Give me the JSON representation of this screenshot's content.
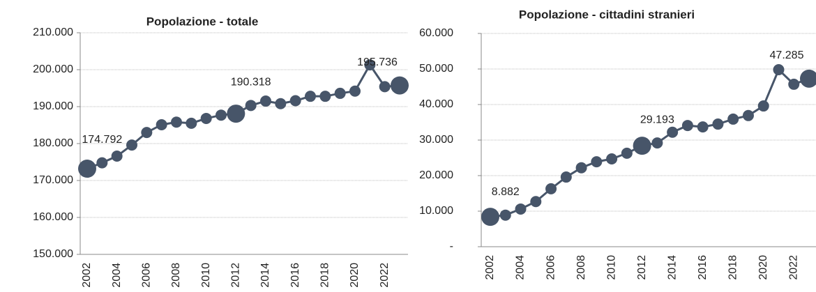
{
  "chart_data": [
    {
      "type": "line",
      "title": "Popolazione - totale",
      "categories": [
        "2002",
        null,
        "2004",
        null,
        "2006",
        null,
        "2008",
        null,
        "2010",
        null,
        "2012",
        null,
        "2014",
        null,
        "2016",
        null,
        "2018",
        null,
        "2020",
        null,
        "2022",
        null
      ],
      "series": [
        {
          "color": "#475569",
          "values": [
            173200,
            174792,
            176600,
            179600,
            183000,
            185100,
            185800,
            185500,
            186800,
            187700,
            188100,
            190318,
            191500,
            190800,
            191600,
            192800,
            192800,
            193600,
            194200,
            201300,
            195400,
            195736
          ],
          "value_labels": [
            null,
            "174.792",
            null,
            null,
            null,
            null,
            null,
            null,
            null,
            null,
            null,
            "190.318",
            null,
            null,
            null,
            null,
            null,
            null,
            null,
            null,
            null,
            "195.736"
          ]
        }
      ],
      "large_markers": [
        0,
        10,
        21
      ],
      "ylim": [
        150000,
        210000
      ],
      "yticks": [
        {
          "value": 150000,
          "label": "150.000"
        },
        {
          "value": 160000,
          "label": "160.000"
        },
        {
          "value": 170000,
          "label": "170.000"
        },
        {
          "value": 180000,
          "label": "180.000"
        },
        {
          "value": 190000,
          "label": "190.000"
        },
        {
          "value": 200000,
          "label": "200.000"
        },
        {
          "value": 210000,
          "label": "210.000"
        }
      ],
      "grid": true
    },
    {
      "type": "line",
      "title": "Popolazione - cittadini stranieri",
      "categories": [
        "2002",
        null,
        "2004",
        null,
        "2006",
        null,
        "2008",
        null,
        "2010",
        null,
        "2012",
        null,
        "2014",
        null,
        "2016",
        null,
        "2018",
        null,
        "2020",
        null,
        "2022",
        null
      ],
      "series": [
        {
          "color": "#475569",
          "values": [
            8400,
            8882,
            10600,
            12700,
            16300,
            19600,
            22200,
            23900,
            24700,
            26300,
            28400,
            29193,
            32200,
            34100,
            33700,
            34500,
            35900,
            36900,
            39600,
            49800,
            45700,
            47285
          ],
          "value_labels": [
            null,
            "8.882",
            null,
            null,
            null,
            null,
            null,
            null,
            null,
            null,
            null,
            "29.193",
            null,
            null,
            null,
            null,
            null,
            null,
            null,
            null,
            null,
            "47.285"
          ]
        }
      ],
      "large_markers": [
        0,
        10,
        21
      ],
      "ylim": [
        0,
        60000
      ],
      "yticks": [
        {
          "value": 0,
          "label": "-"
        },
        {
          "value": 10000,
          "label": "10.000"
        },
        {
          "value": 20000,
          "label": "20.000"
        },
        {
          "value": 30000,
          "label": "30.000"
        },
        {
          "value": 40000,
          "label": "40.000"
        },
        {
          "value": 50000,
          "label": "50.000"
        },
        {
          "value": 60000,
          "label": "60.000"
        }
      ],
      "grid": true
    }
  ]
}
